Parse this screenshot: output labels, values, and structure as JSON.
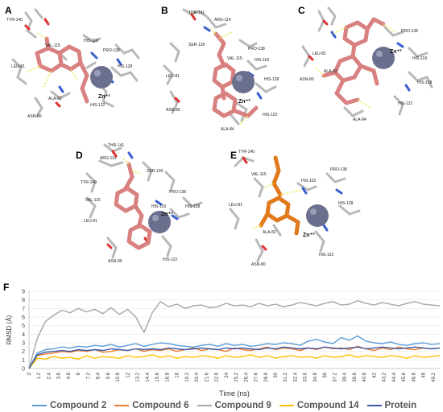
{
  "panels": [
    {
      "letter": "A",
      "ion": "Zn⁺²",
      "residues": [
        "TYR-140",
        "VAL-115",
        "HIS-118",
        "PRO-138",
        "HIS-128",
        "LEU-81",
        "ALA-82",
        "ASN-80",
        "HIS-122"
      ]
    },
    {
      "letter": "B",
      "ion": "Zn⁺²",
      "residues": [
        "THR-141",
        "ARG-114",
        "SER-139",
        "PRO-138",
        "VAL-115",
        "HIS-118",
        "LEU-81",
        "HIS-128",
        "ASN-80",
        "HIS-122",
        "ALA-84"
      ]
    },
    {
      "letter": "C",
      "ion": "Zn⁺²",
      "residues": [
        "LEU-81",
        "PRO-138",
        "HIS-118",
        "ASN-80",
        "ALA-82",
        "HIS-128",
        "HIS-122",
        "ALA-84"
      ]
    },
    {
      "letter": "D",
      "ion": "Zn⁺²",
      "residues": [
        "THR-141",
        "ARG-114",
        "SER-139",
        "TYR-140",
        "PRO-138",
        "VAL-115",
        "HIS-118",
        "HIS-128",
        "LEU-81",
        "ASN-80",
        "HIS-122"
      ]
    },
    {
      "letter": "E",
      "ion": "Zn⁺²",
      "residues": [
        "TYR-140",
        "VAL-115",
        "HIS-118",
        "PRO-138",
        "HIS-128",
        "LEU-81",
        "ALA-82",
        "ASN-80",
        "HIS-122"
      ]
    }
  ],
  "colors": {
    "ligand_pink": "#d98080",
    "ligand_orange": "#e07a1c",
    "zinc": "#6b6f8e",
    "stick": "#b8b8b8",
    "hbond": "#e6e62e"
  },
  "chart_data": {
    "type": "line",
    "panel_letter": "F",
    "ylabel": "RMSD (Å)",
    "xlabel": "Time (ns)",
    "ylim": [
      0,
      9
    ],
    "yticks": [
      "0",
      "1",
      "2",
      "3",
      "4",
      "5",
      "6",
      "7",
      "8",
      "9"
    ],
    "xlim": [
      0,
      50
    ],
    "xticks": [
      "0",
      "1.2",
      "2.4",
      "3.6",
      "4.8",
      "6",
      "7.2",
      "8.4",
      "9.6",
      "10.8",
      "12",
      "13.2",
      "14.4",
      "15.6",
      "16.8",
      "18",
      "19.2",
      "20.4",
      "21.6",
      "22.8",
      "24",
      "25.2",
      "26.4",
      "27.6",
      "28.8",
      "30",
      "31.2",
      "32.4",
      "33.6",
      "34.8",
      "36",
      "37.2",
      "38.4",
      "39.6",
      "40.8",
      "42",
      "43.2",
      "44.4",
      "45.6",
      "46.8",
      "48",
      "49.2"
    ],
    "x": [
      0,
      1,
      2,
      3,
      4,
      5,
      6,
      7,
      8,
      9,
      10,
      11,
      12,
      13,
      14,
      15,
      16,
      17,
      18,
      19,
      20,
      21,
      22,
      23,
      24,
      25,
      26,
      27,
      28,
      29,
      30,
      31,
      32,
      33,
      34,
      35,
      36,
      37,
      38,
      39,
      40,
      41,
      42,
      43,
      44,
      45,
      46,
      47,
      48,
      49,
      50
    ],
    "series": [
      {
        "name": "Compound 2",
        "color": "#5b9bd5",
        "values": [
          0,
          1.8,
          2.2,
          2.3,
          2.5,
          2.4,
          2.6,
          2.5,
          2.7,
          2.6,
          2.8,
          2.5,
          2.7,
          2.9,
          2.6,
          2.8,
          3.0,
          2.9,
          2.7,
          2.6,
          2.5,
          2.7,
          2.8,
          2.6,
          2.9,
          2.7,
          2.8,
          2.6,
          2.7,
          2.9,
          2.8,
          3.0,
          2.9,
          2.7,
          3.2,
          3.4,
          3.1,
          2.9,
          3.6,
          3.3,
          3.8,
          3.2,
          3.0,
          2.9,
          3.1,
          2.8,
          2.7,
          2.9,
          3.0,
          2.8,
          2.9
        ]
      },
      {
        "name": "Compound 6",
        "color": "#ed7d31",
        "values": [
          0,
          1.5,
          1.7,
          1.8,
          2.0,
          1.9,
          2.1,
          2.0,
          2.2,
          1.9,
          2.0,
          2.2,
          2.1,
          2.3,
          2.0,
          2.2,
          2.1,
          2.3,
          2.0,
          2.2,
          2.4,
          2.1,
          2.3,
          2.2,
          2.0,
          2.4,
          2.2,
          2.1,
          2.3,
          2.5,
          2.2,
          2.4,
          2.3,
          2.1,
          2.4,
          2.2,
          2.5,
          2.3,
          2.4,
          2.2,
          2.6,
          2.3,
          2.1,
          2.4,
          2.2,
          2.5,
          2.3,
          2.2,
          2.4,
          2.3,
          2.4
        ]
      },
      {
        "name": "Compound 9",
        "color": "#a5a5a5",
        "values": [
          0,
          3.5,
          5.5,
          6.2,
          6.8,
          6.5,
          7.0,
          6.6,
          6.9,
          6.4,
          7.1,
          6.3,
          6.9,
          6.0,
          4.2,
          6.5,
          7.8,
          7.2,
          7.5,
          7.0,
          7.3,
          7.4,
          7.1,
          7.2,
          7.6,
          7.3,
          7.4,
          7.2,
          7.6,
          7.3,
          7.5,
          7.2,
          7.4,
          7.7,
          7.5,
          7.3,
          7.6,
          7.8,
          7.4,
          7.5,
          7.9,
          7.6,
          7.4,
          7.7,
          7.5,
          7.3,
          7.6,
          7.8,
          7.5,
          7.4,
          7.3
        ]
      },
      {
        "name": "Compound 14",
        "color": "#ffc000",
        "values": [
          0,
          1.2,
          1.1,
          1.4,
          1.2,
          1.3,
          1.1,
          1.5,
          1.2,
          1.4,
          1.3,
          1.2,
          1.5,
          1.3,
          1.4,
          1.6,
          1.3,
          1.5,
          1.2,
          1.4,
          1.3,
          1.5,
          1.4,
          1.2,
          1.5,
          1.3,
          1.4,
          1.6,
          1.3,
          1.5,
          1.2,
          1.4,
          1.5,
          1.3,
          1.4,
          1.2,
          1.5,
          1.3,
          1.4,
          1.6,
          1.3,
          1.5,
          1.4,
          1.3,
          1.5,
          1.4,
          1.2,
          1.5,
          1.3,
          1.4,
          1.5
        ]
      },
      {
        "name": "Protein",
        "color": "#3c5aa8",
        "values": [
          0,
          1.6,
          1.9,
          2.0,
          2.1,
          2.0,
          2.2,
          2.1,
          2.2,
          2.1,
          2.3,
          2.2,
          2.1,
          2.3,
          2.2,
          2.3,
          2.2,
          2.4,
          2.3,
          2.2,
          2.3,
          2.4,
          2.3,
          2.2,
          2.4,
          2.3,
          2.4,
          2.3,
          2.2,
          2.4,
          2.3,
          2.5,
          2.4,
          2.3,
          2.4,
          2.3,
          2.5,
          2.4,
          2.3,
          2.4,
          2.5,
          2.3,
          2.4,
          2.5,
          2.4,
          2.3,
          2.4,
          2.5,
          2.4,
          2.3,
          2.4
        ]
      }
    ]
  }
}
